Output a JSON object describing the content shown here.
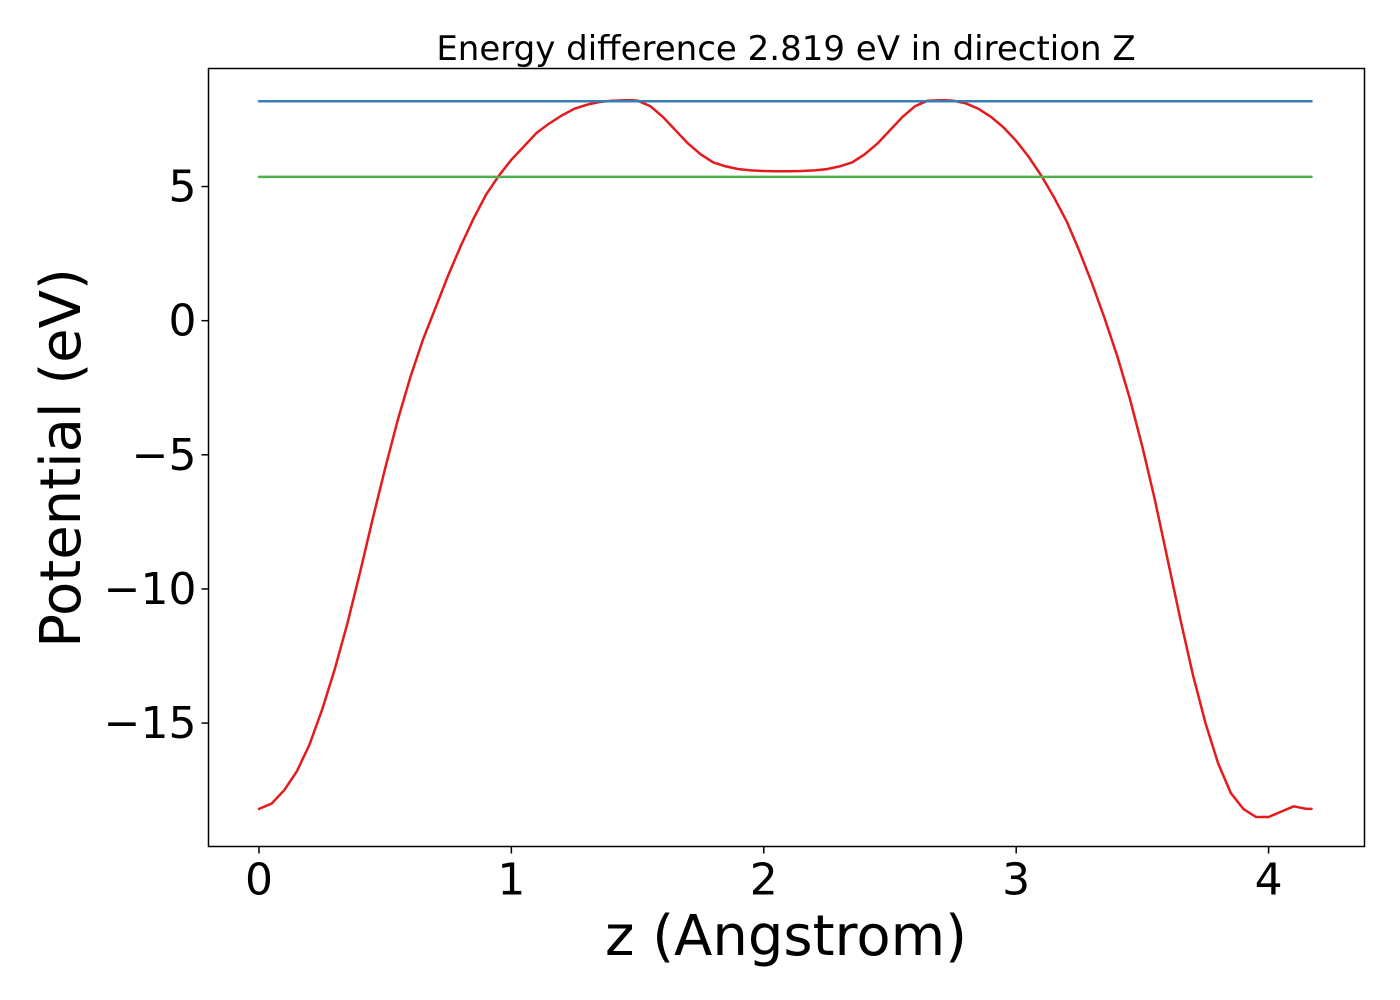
{
  "chart_data": {
    "type": "line",
    "title": "Energy difference 2.819 eV in direction Z",
    "xlabel": "z (Angstrom)",
    "ylabel": "Potential (eV)",
    "xlim": [
      -0.2,
      4.38
    ],
    "ylim": [
      -19.6,
      9.4
    ],
    "xticks": [
      0,
      1,
      2,
      3,
      4
    ],
    "xtick_labels": [
      "0",
      "1",
      "2",
      "3",
      "4"
    ],
    "yticks": [
      5,
      0,
      -5,
      -10,
      -15
    ],
    "ytick_labels": [
      "5",
      "0",
      "−5",
      "−10",
      "−15"
    ],
    "grid": false,
    "legend": "none",
    "series": [
      {
        "id": "potential",
        "color": "#e41a1c",
        "x": [
          0,
          0.05,
          0.1,
          0.15,
          0.2,
          0.25,
          0.3,
          0.35,
          0.4,
          0.45,
          0.5,
          0.55,
          0.6,
          0.65,
          0.7,
          0.75,
          0.8,
          0.85,
          0.9,
          0.95,
          1.0,
          1.05,
          1.1,
          1.15,
          1.2,
          1.25,
          1.3,
          1.35,
          1.4,
          1.45,
          1.48,
          1.5,
          1.55,
          1.6,
          1.65,
          1.7,
          1.75,
          1.8,
          1.85,
          1.9,
          1.95,
          2.0,
          2.05,
          2.1,
          2.15,
          2.2,
          2.25,
          2.3,
          2.35,
          2.4,
          2.45,
          2.5,
          2.55,
          2.6,
          2.65,
          2.7,
          2.72,
          2.75,
          2.8,
          2.85,
          2.9,
          2.95,
          3.0,
          3.05,
          3.1,
          3.15,
          3.2,
          3.25,
          3.3,
          3.35,
          3.4,
          3.45,
          3.5,
          3.55,
          3.6,
          3.65,
          3.7,
          3.75,
          3.8,
          3.85,
          3.9,
          3.95,
          4.0,
          4.05,
          4.1,
          4.15,
          4.17
        ],
        "y": [
          -18.2,
          -18.0,
          -17.5,
          -16.8,
          -15.8,
          -14.5,
          -13.0,
          -11.3,
          -9.4,
          -7.4,
          -5.5,
          -3.7,
          -2.1,
          -0.7,
          0.5,
          1.7,
          2.8,
          3.8,
          4.7,
          5.4,
          6.0,
          6.5,
          7.0,
          7.35,
          7.65,
          7.9,
          8.05,
          8.15,
          8.2,
          8.22,
          8.22,
          8.2,
          8.0,
          7.6,
          7.1,
          6.6,
          6.2,
          5.9,
          5.75,
          5.65,
          5.6,
          5.58,
          5.57,
          5.57,
          5.58,
          5.6,
          5.65,
          5.75,
          5.9,
          6.2,
          6.6,
          7.1,
          7.6,
          8.0,
          8.2,
          8.22,
          8.22,
          8.2,
          8.1,
          7.9,
          7.6,
          7.2,
          6.7,
          6.1,
          5.4,
          4.6,
          3.7,
          2.6,
          1.4,
          0.1,
          -1.3,
          -2.9,
          -4.7,
          -6.7,
          -8.9,
          -11.1,
          -13.2,
          -15.0,
          -16.5,
          -17.6,
          -18.2,
          -18.5,
          -18.5,
          -18.3,
          -18.1,
          -18.2,
          -18.2
        ]
      },
      {
        "id": "max-level",
        "color": "#377eb8",
        "x": [
          0,
          4.17
        ],
        "y": [
          8.18,
          8.18
        ]
      },
      {
        "id": "reference-level",
        "color": "#4daf4a",
        "x": [
          0,
          4.17
        ],
        "y": [
          5.36,
          5.36
        ]
      }
    ]
  }
}
